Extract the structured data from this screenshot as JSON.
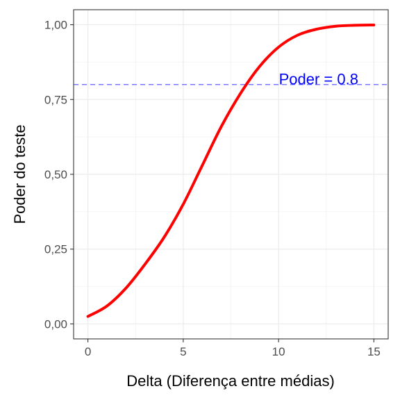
{
  "chart_data": {
    "type": "line",
    "title": "",
    "xlabel": "Delta (Diferença entre médias)",
    "ylabel": "Poder do teste",
    "xlim": [
      -0.75,
      15.75
    ],
    "ylim": [
      -0.05,
      1.05
    ],
    "x_ticks": [
      0,
      5,
      10,
      15
    ],
    "x_tick_labels": [
      "0",
      "5",
      "10",
      "15"
    ],
    "y_ticks": [
      0,
      0.25,
      0.5,
      0.75,
      1
    ],
    "y_tick_labels": [
      "0,00",
      "0,25",
      "0,50",
      "0,75",
      "1,00"
    ],
    "grid": true,
    "legend": "none",
    "series": [
      {
        "color": "#ff0000",
        "x": [
          0,
          1,
          2,
          3,
          4,
          5,
          6,
          7,
          8,
          9,
          10,
          11,
          12,
          13,
          14,
          15
        ],
        "y": [
          0.025,
          0.06,
          0.12,
          0.2,
          0.29,
          0.4,
          0.53,
          0.66,
          0.77,
          0.86,
          0.925,
          0.965,
          0.985,
          0.995,
          0.998,
          0.999
        ]
      }
    ],
    "reference_lines": [
      {
        "orientation": "horizontal",
        "y": 0.8,
        "style": "dashed",
        "color": "#6060ff"
      }
    ],
    "annotations": [
      {
        "text": "Poder = 0.8",
        "x": 12.1,
        "y": 0.81,
        "color": "#0000ff"
      }
    ]
  }
}
